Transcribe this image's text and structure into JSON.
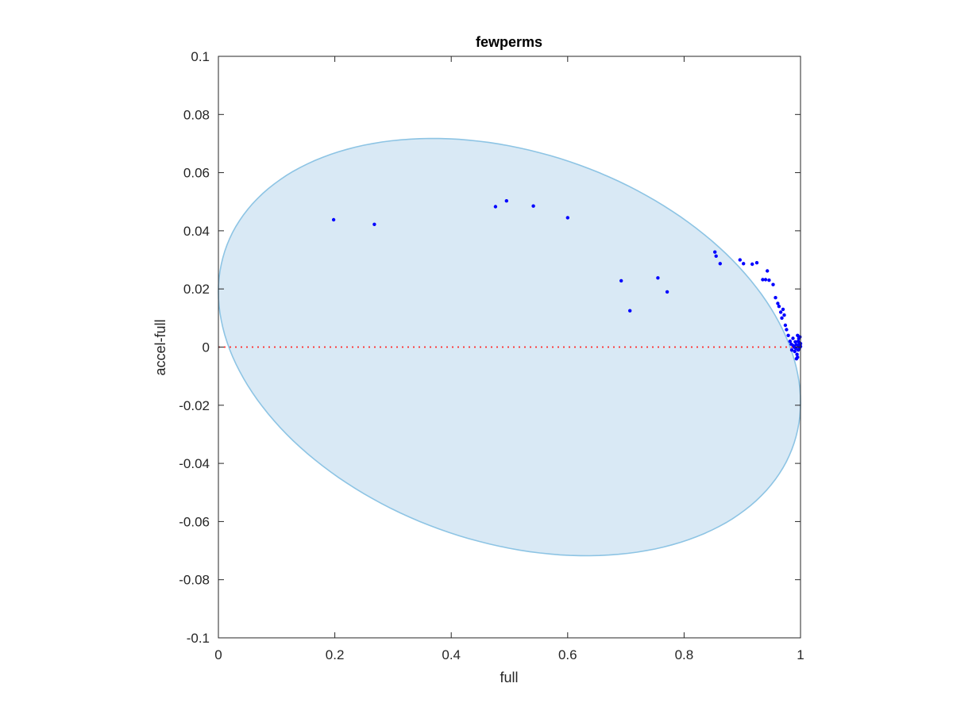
{
  "chart_data": {
    "type": "scatter",
    "title": "fewperms",
    "xlabel": "full",
    "ylabel": "accel-full",
    "xlim": [
      0,
      1
    ],
    "ylim": [
      -0.1,
      0.1
    ],
    "xticks": [
      "0",
      "0.2",
      "0.4",
      "0.6",
      "0.8",
      "1"
    ],
    "yticks": [
      "0.1",
      "0.08",
      "0.06",
      "0.04",
      "0.02",
      "0",
      "-0.02",
      "-0.04",
      "-0.06",
      "-0.08",
      "-0.1"
    ],
    "grid": false,
    "colors": {
      "points": "#0000ff",
      "region_fill": "#d9e9f5",
      "region_stroke": "#8dc4e4",
      "reference_line": "#ff2a2a",
      "axis": "#262626"
    },
    "reference_line": {
      "y": 0,
      "style": "dotted"
    },
    "region": {
      "shape": "ellipse",
      "center": [
        0.5,
        0
      ],
      "semi_axis_x": 0.5,
      "semi_axis_y": 0.0692,
      "tilt_points": [
        [
          0.43,
          0.0692
        ],
        [
          0.57,
          -0.0692
        ],
        [
          0,
          0.019
        ],
        [
          1,
          -0.019
        ]
      ]
    },
    "points": [
      [
        0.198,
        0.0438
      ],
      [
        0.268,
        0.0422
      ],
      [
        0.476,
        0.0483
      ],
      [
        0.495,
        0.0503
      ],
      [
        0.541,
        0.0485
      ],
      [
        0.6,
        0.0445
      ],
      [
        0.692,
        0.0228
      ],
      [
        0.707,
        0.0125
      ],
      [
        0.755,
        0.0238
      ],
      [
        0.771,
        0.019
      ],
      [
        0.853,
        0.0327
      ],
      [
        0.855,
        0.0313
      ],
      [
        0.862,
        0.0287
      ],
      [
        0.896,
        0.03
      ],
      [
        0.902,
        0.0287
      ],
      [
        0.917,
        0.0285
      ],
      [
        0.925,
        0.029
      ],
      [
        0.935,
        0.0232
      ],
      [
        0.94,
        0.0232
      ],
      [
        0.943,
        0.0262
      ],
      [
        0.946,
        0.023
      ],
      [
        0.953,
        0.0215
      ],
      [
        0.957,
        0.017
      ],
      [
        0.961,
        0.015
      ],
      [
        0.963,
        0.014
      ],
      [
        0.966,
        0.012
      ],
      [
        0.968,
        0.01
      ],
      [
        0.97,
        0.013
      ],
      [
        0.972,
        0.011
      ],
      [
        0.974,
        0.0075
      ],
      [
        0.976,
        0.006
      ],
      [
        0.979,
        0.004
      ],
      [
        0.982,
        0.002
      ],
      [
        0.984,
        0.001
      ],
      [
        0.985,
        -0.001
      ],
      [
        0.987,
        0.003
      ],
      [
        0.988,
        0.0005
      ],
      [
        0.99,
        -0.0015
      ],
      [
        0.991,
        0.0018
      ],
      [
        0.992,
        -0.0005
      ],
      [
        0.993,
        0.0008
      ],
      [
        0.994,
        -0.0025
      ],
      [
        0.995,
        0.004
      ],
      [
        0.995,
        -0.0035
      ],
      [
        0.996,
        0.002
      ],
      [
        0.996,
        -0.001
      ],
      [
        0.997,
        0.003
      ],
      [
        0.997,
        0.0005
      ],
      [
        0.998,
        -0.0005
      ],
      [
        0.998,
        0.0015
      ],
      [
        0.999,
        0.0008
      ],
      [
        0.999,
        0.0035
      ],
      [
        1.0,
        0.0002
      ],
      [
        1.0,
        0.0012
      ],
      [
        0.993,
        -0.004
      ],
      [
        0.989,
        0.0
      ]
    ]
  }
}
